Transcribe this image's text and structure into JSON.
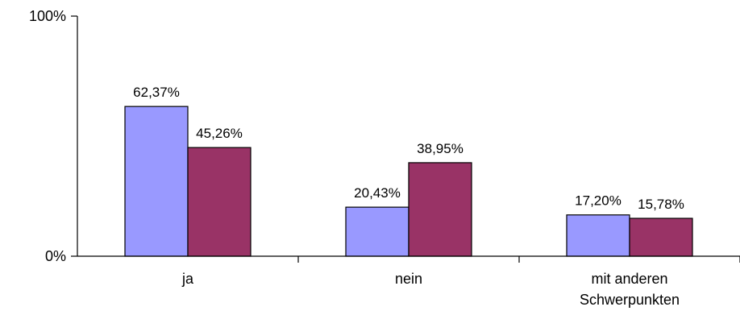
{
  "chart_data": {
    "type": "bar",
    "categories": [
      "ja",
      "nein",
      "mit anderen Schwerpunkten"
    ],
    "category_lines": [
      [
        "ja"
      ],
      [
        "nein"
      ],
      [
        "mit anderen",
        "Schwerpunkten"
      ]
    ],
    "series": [
      {
        "values": [
          62.37,
          20.43,
          17.2
        ],
        "labels": [
          "62,37%",
          "20,43%",
          "17,20%"
        ],
        "color": "#9999ff"
      },
      {
        "values": [
          45.26,
          38.95,
          15.78
        ],
        "labels": [
          "45,26%",
          "38,95%",
          "15,78%"
        ],
        "color": "#993366"
      }
    ],
    "y_ticks": [
      {
        "value": 0,
        "label": "0%"
      },
      {
        "value": 100,
        "label": "100%"
      }
    ],
    "ylim": [
      0,
      100
    ],
    "grid": false,
    "legend": "none",
    "axis_color": "#000000"
  }
}
